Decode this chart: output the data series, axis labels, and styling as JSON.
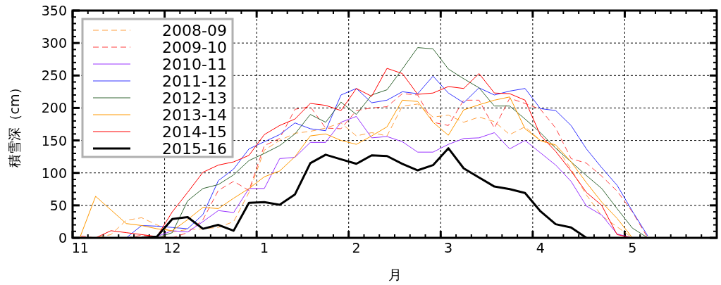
{
  "chart_data": {
    "type": "line",
    "xlabel": "月",
    "ylabel": "積雪深（cm）",
    "categories": [
      "11",
      null,
      null,
      null,
      null,
      null,
      "12",
      null,
      null,
      null,
      null,
      null,
      "1",
      null,
      null,
      null,
      null,
      null,
      "2",
      null,
      null,
      null,
      null,
      null,
      "3",
      null,
      null,
      null,
      null,
      null,
      "4",
      null,
      null,
      null,
      null,
      null,
      "5",
      null,
      null,
      null,
      null,
      null
    ],
    "ylim": [
      0,
      350
    ],
    "yticks": [
      0,
      50,
      100,
      150,
      200,
      250,
      300,
      350
    ],
    "grid": true,
    "legend": "top left",
    "series": [
      {
        "name": "2008-09",
        "color": "#ffa040",
        "line_style": "dashed",
        "values": [
          0,
          0,
          5,
          27,
          31,
          20,
          9,
          13,
          14,
          16,
          25,
          70,
          135,
          150,
          161,
          164,
          169,
          177,
          157,
          162,
          157,
          203,
          206,
          186,
          189,
          178,
          186,
          179,
          159,
          171,
          150,
          141,
          106,
          66,
          34,
          17,
          0,
          null,
          null,
          null,
          null,
          null
        ]
      },
      {
        "name": "2009-10",
        "color": "#ff4040",
        "line_style": "dashed",
        "values": [
          3,
          0,
          0,
          0,
          4,
          2,
          0,
          8,
          28,
          73,
          87,
          73,
          142,
          153,
          198,
          202,
          169,
          168,
          196,
          200,
          202,
          222,
          220,
          178,
          173,
          212,
          212,
          169,
          215,
          207,
          198,
          169,
          122,
          115,
          95,
          72,
          40,
          0,
          null,
          null,
          null,
          null
        ]
      },
      {
        "name": "2010-11",
        "color": "#9933ff",
        "line_style": "solid",
        "values": [
          null,
          null,
          null,
          null,
          0,
          2,
          11,
          9,
          25,
          42,
          39,
          76,
          76,
          122,
          124,
          147,
          147,
          178,
          187,
          154,
          156,
          148,
          132,
          132,
          144,
          153,
          154,
          162,
          137,
          150,
          131,
          112,
          87,
          49,
          35,
          6,
          0,
          null,
          null,
          null,
          null,
          null
        ]
      },
      {
        "name": "2011-12",
        "color": "#3333ff",
        "line_style": "solid",
        "values": [
          null,
          null,
          null,
          0,
          19,
          18,
          16,
          14,
          36,
          88,
          106,
          137,
          148,
          159,
          177,
          168,
          165,
          220,
          230,
          208,
          212,
          225,
          222,
          249,
          223,
          208,
          231,
          220,
          226,
          230,
          199,
          196,
          173,
          137,
          108,
          81,
          41,
          3,
          null,
          null,
          null,
          null
        ]
      },
      {
        "name": "2012-13",
        "color": "#336633",
        "line_style": "solid",
        "values": [
          null,
          null,
          null,
          null,
          0,
          0,
          8,
          57,
          76,
          82,
          97,
          119,
          130,
          142,
          160,
          190,
          178,
          209,
          190,
          220,
          228,
          260,
          293,
          291,
          260,
          245,
          231,
          203,
          203,
          183,
          162,
          138,
          117,
          96,
          76,
          45,
          15,
          0,
          null,
          null,
          null,
          null
        ]
      },
      {
        "name": "2013-14",
        "color": "#ff9900",
        "line_style": "solid",
        "values": [
          2,
          64,
          43,
          22,
          19,
          14,
          11,
          28,
          47,
          45,
          61,
          76,
          94,
          103,
          125,
          157,
          160,
          150,
          144,
          157,
          171,
          212,
          210,
          178,
          158,
          197,
          205,
          212,
          217,
          168,
          150,
          143,
          117,
          85,
          55,
          30,
          0,
          null,
          null,
          null,
          null,
          null
        ]
      },
      {
        "name": "2014-15",
        "color": "#ff0000",
        "line_style": "solid",
        "values": [
          null,
          0,
          11,
          8,
          5,
          2,
          40,
          70,
          101,
          112,
          117,
          127,
          159,
          173,
          183,
          207,
          204,
          196,
          230,
          218,
          261,
          253,
          221,
          223,
          233,
          230,
          253,
          223,
          222,
          212,
          158,
          133,
          103,
          70,
          50,
          5,
          0,
          null,
          null,
          null,
          null,
          null
        ]
      },
      {
        "name": "2015-16",
        "color": "#000000",
        "line_style": "solid",
        "values": [
          null,
          null,
          null,
          null,
          0,
          2,
          29,
          32,
          14,
          20,
          11,
          54,
          55,
          51,
          67,
          115,
          128,
          121,
          114,
          127,
          126,
          114,
          104,
          112,
          138,
          107,
          93,
          79,
          75,
          69,
          41,
          21,
          16,
          0,
          null,
          null,
          null,
          null,
          null,
          null,
          null,
          null
        ]
      }
    ]
  }
}
